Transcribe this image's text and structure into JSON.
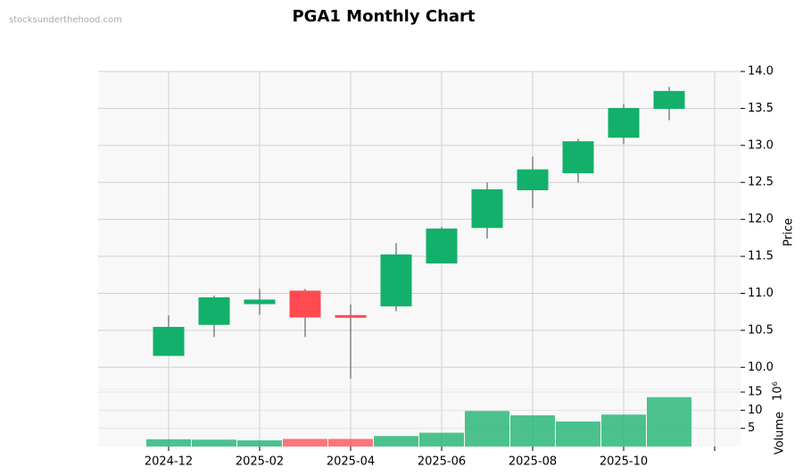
{
  "watermark": "stocksunderthehood.com",
  "chart_data": {
    "type": "candlestick",
    "title": "PGA1 Monthly Chart",
    "categories": [
      "2024-12",
      null,
      "2025-02",
      null,
      "2025-04",
      null,
      "2025-06",
      null,
      "2025-08",
      null,
      "2025-10",
      null
    ],
    "open": [
      10.16,
      10.58,
      10.86,
      11.03,
      10.7,
      10.83,
      11.41,
      11.89,
      12.4,
      12.63,
      13.11,
      13.5
    ],
    "high": [
      10.7,
      10.97,
      11.06,
      11.06,
      10.85,
      11.68,
      11.9,
      12.5,
      12.85,
      13.09,
      13.56,
      13.79
    ],
    "low": [
      10.16,
      10.41,
      10.71,
      10.41,
      9.85,
      10.76,
      11.41,
      11.74,
      12.15,
      12.5,
      13.02,
      13.34
    ],
    "close": [
      10.54,
      10.94,
      10.91,
      10.68,
      10.68,
      11.52,
      11.87,
      12.4,
      12.67,
      13.05,
      13.5,
      13.73
    ],
    "volume": [
      2.0,
      1.9,
      1.7,
      2.1,
      2.1,
      2.9,
      3.8,
      9.8,
      8.6,
      6.9,
      8.8,
      13.6
    ],
    "up_color": "#12b06a",
    "down_color": "#ff4a4f",
    "ylabel": "Price",
    "ylim": [
      9.75,
      14
    ],
    "yticks": [
      {
        "value": 10,
        "label": "10.0"
      },
      10.5,
      {
        "value": 11,
        "label": "11.0"
      },
      11.5,
      {
        "value": 12,
        "label": "12.0"
      },
      12.5,
      {
        "value": 13,
        "label": "13.0"
      },
      13.5,
      {
        "value": 14,
        "label": "14.0"
      }
    ],
    "volume_label": "Volume",
    "volume_multiplier": "10⁶",
    "volume_ylim": [
      0,
      15.5
    ],
    "volume_yticks": [
      5,
      10,
      15
    ],
    "grid": true
  }
}
